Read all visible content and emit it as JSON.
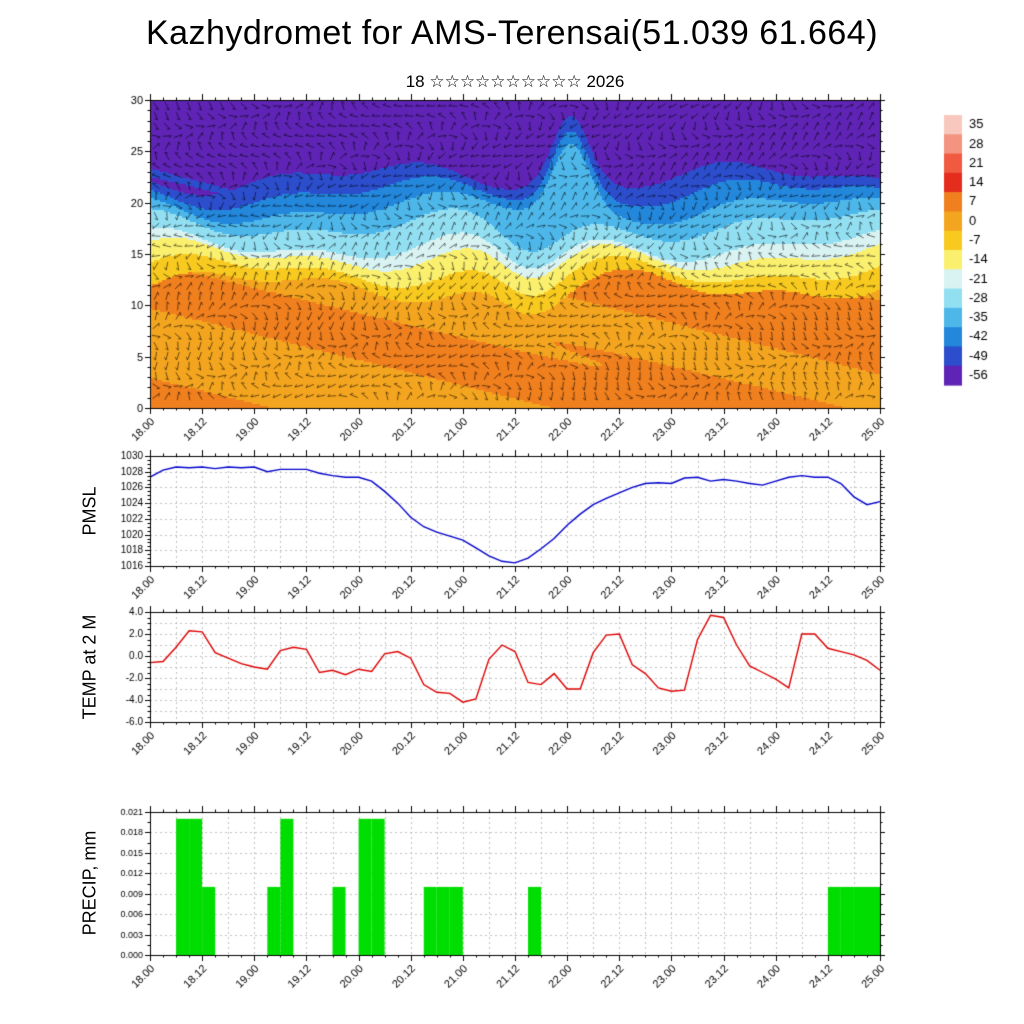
{
  "title": "Kazhydromet for AMS-Terensai(51.039 61.664)",
  "subtitle": "18 ☆☆☆☆☆☆☆☆☆☆ 2026",
  "x_axis": {
    "tick_labels": [
      "18.00",
      "18.12",
      "19.00",
      "19.12",
      "20.00",
      "20.12",
      "21.00",
      "21.12",
      "22.00",
      "22.12",
      "23.00",
      "23.12",
      "24.00",
      "24.12",
      "25.00"
    ],
    "tick_hours": [
      0,
      12,
      24,
      36,
      48,
      60,
      72,
      84,
      96,
      108,
      120,
      132,
      144,
      156,
      168
    ],
    "range_hours": [
      0,
      168
    ]
  },
  "chart_data": [
    {
      "type": "heatmap",
      "name": "upper-air-temperature-wind-cross-section",
      "ylabel": "",
      "ylim": [
        0,
        30
      ],
      "y_ticks": [
        0,
        5,
        10,
        15,
        20,
        25,
        30
      ],
      "grid": false,
      "wind_barbs": true,
      "colorbar": {
        "position": "right",
        "tick_labels": [
          "35",
          "28",
          "21",
          "14",
          "7",
          "0",
          "-7",
          "-14",
          "-21",
          "-28",
          "-35",
          "-42",
          "-49",
          "-56"
        ],
        "values": [
          35,
          28,
          21,
          14,
          7,
          0,
          -7,
          -14,
          -21,
          -28,
          -35,
          -42,
          -49,
          -56
        ],
        "colors": [
          "#f8c8be",
          "#f4937f",
          "#ef5a41",
          "#e52d1d",
          "#f07f1e",
          "#f4a51f",
          "#f8ca20",
          "#faf06e",
          "#d9f3f2",
          "#93dff2",
          "#4db7ea",
          "#2387dc",
          "#2c4ecd",
          "#5f24b5"
        ]
      },
      "bands": [
        {
          "to": 12,
          "value": 4,
          "patch_amp": 7
        },
        {
          "to": 13.5,
          "value": -5,
          "patch_amp": 0
        },
        {
          "to": 15,
          "value": -12,
          "patch_amp": 0
        },
        {
          "to": 16,
          "value": -18,
          "patch_amp": 0
        },
        {
          "to": 18,
          "value": -25,
          "patch_amp": 0
        },
        {
          "to": 19.5,
          "value": -32,
          "patch_amp": 0
        },
        {
          "to": 21,
          "value": -39,
          "patch_amp": 0
        },
        {
          "to": 22.5,
          "value": -47,
          "patch_amp": 0
        },
        {
          "to": 30,
          "value": -58,
          "patch_amp": 6
        }
      ]
    },
    {
      "type": "line",
      "name": "pmsl",
      "ylabel": "PMSL",
      "color": "#0000cc",
      "ylim": [
        1016,
        1030
      ],
      "y_ticks": [
        1016,
        1018,
        1020,
        1022,
        1024,
        1026,
        1028,
        1030
      ],
      "grid_step": 2,
      "minor_step": 0.5,
      "x_start_hour": 0,
      "x_step_hours": 3,
      "values": [
        1027.3,
        1028.2,
        1028.6,
        1028.5,
        1028.6,
        1028.4,
        1028.6,
        1028.5,
        1028.6,
        1028.0,
        1028.3,
        1028.3,
        1028.3,
        1027.8,
        1027.5,
        1027.3,
        1027.3,
        1026.8,
        1025.5,
        1024.0,
        1022.2,
        1021.0,
        1020.3,
        1019.8,
        1019.3,
        1018.3,
        1017.3,
        1016.6,
        1016.4,
        1017.0,
        1018.2,
        1019.5,
        1021.2,
        1022.6,
        1023.8,
        1024.6,
        1025.3,
        1026.0,
        1026.5,
        1026.6,
        1026.5,
        1027.2,
        1027.3,
        1026.8,
        1027.0,
        1026.8,
        1026.5,
        1026.3,
        1026.8,
        1027.3,
        1027.5,
        1027.3,
        1027.3,
        1026.5,
        1024.8,
        1023.8,
        1024.2
      ]
    },
    {
      "type": "line",
      "name": "temp-at-2m",
      "ylabel": "TEMP at 2 M",
      "color": "#dd0000",
      "ylim": [
        -6,
        4
      ],
      "y_ticks": [
        -6,
        -4,
        -2,
        0,
        2,
        4
      ],
      "y_tick_labels": [
        "-6.0",
        "-4.0",
        "-2.0",
        "0.0",
        "2.0",
        "4.0"
      ],
      "grid_step": 1,
      "minor_step": 0.5,
      "x_start_hour": 0,
      "x_step_hours": 3,
      "values": [
        -0.6,
        -0.5,
        0.8,
        2.3,
        2.2,
        0.3,
        -0.2,
        -0.7,
        -1.0,
        -1.2,
        0.5,
        0.8,
        0.6,
        -1.5,
        -1.3,
        -1.7,
        -1.2,
        -1.4,
        0.2,
        0.4,
        -0.2,
        -2.6,
        -3.3,
        -3.4,
        -4.2,
        -3.9,
        -0.3,
        1.0,
        0.4,
        -2.4,
        -2.6,
        -1.6,
        -3.0,
        -3.0,
        0.3,
        1.9,
        2.0,
        -0.8,
        -1.6,
        -2.9,
        -3.2,
        -3.1,
        1.5,
        3.7,
        3.5,
        1.0,
        -0.9,
        -1.5,
        -2.1,
        -2.9,
        2.0,
        2.0,
        0.7,
        0.4,
        0.1,
        -0.4,
        -1.3
      ]
    },
    {
      "type": "bar",
      "name": "precip",
      "ylabel": "PRECIP, mm",
      "color": "#00dd00",
      "ylim": [
        0,
        0.021
      ],
      "y_ticks": [
        0,
        0.003,
        0.006,
        0.009,
        0.012,
        0.015,
        0.018,
        0.021
      ],
      "y_tick_labels": [
        "0.000",
        "0.003",
        "0.006",
        "0.009",
        "0.012",
        "0.015",
        "0.018",
        "0.021"
      ],
      "grid_step": 0.003,
      "minor_step": 0.0015,
      "x_start_hour": 0,
      "bar_width_hours": 3,
      "values": [
        0,
        0,
        0.02,
        0.02,
        0.01,
        0,
        0,
        0,
        0,
        0.01,
        0.02,
        0,
        0,
        0,
        0.01,
        0,
        0.02,
        0.02,
        0,
        0,
        0,
        0.01,
        0.01,
        0.01,
        0,
        0,
        0,
        0,
        0,
        0.01,
        0,
        0,
        0,
        0,
        0,
        0,
        0,
        0,
        0,
        0,
        0,
        0,
        0,
        0,
        0,
        0,
        0,
        0,
        0,
        0,
        0,
        0,
        0.01,
        0.01,
        0.01,
        0.01
      ]
    }
  ]
}
